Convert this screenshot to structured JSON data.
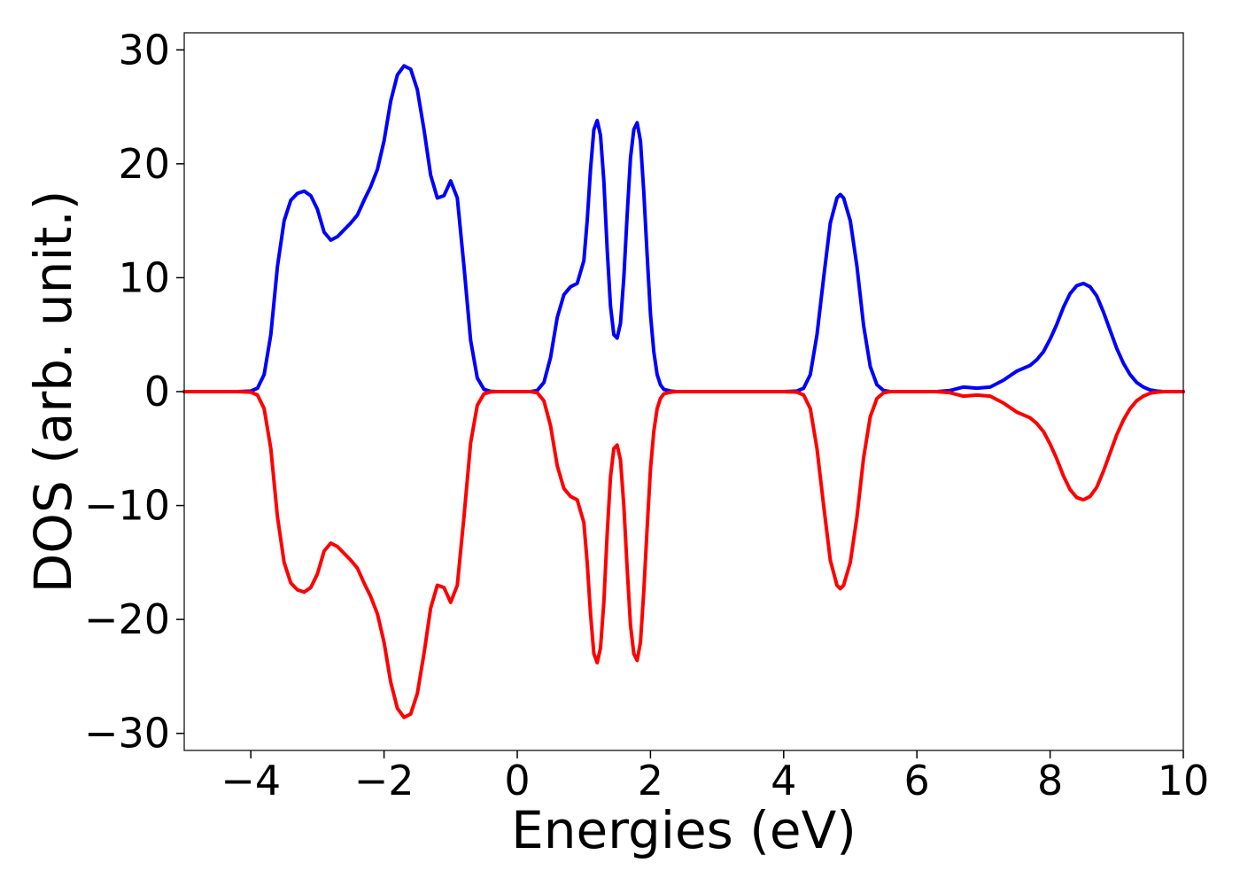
{
  "chart_data": {
    "type": "line",
    "title": "",
    "xlabel": "Energies (eV)",
    "ylabel": "DOS (arb. unit.)",
    "xlim": [
      -5,
      10
    ],
    "ylim": [
      -31.5,
      31.5
    ],
    "xticks": [
      -4,
      -2,
      0,
      2,
      4,
      6,
      8,
      10
    ],
    "yticks": [
      -30,
      -20,
      -10,
      0,
      10,
      20,
      30
    ],
    "xtick_labels": [
      "−4",
      "−2",
      "0",
      "2",
      "4",
      "6",
      "8",
      "10"
    ],
    "ytick_labels": [
      "−30",
      "−20",
      "−10",
      "0",
      "10",
      "20",
      "30"
    ],
    "grid": false,
    "legend": "none",
    "x": [
      -5.0,
      -4.2,
      -4.0,
      -3.9,
      -3.8,
      -3.7,
      -3.6,
      -3.5,
      -3.4,
      -3.3,
      -3.2,
      -3.1,
      -3.0,
      -2.9,
      -2.8,
      -2.7,
      -2.6,
      -2.5,
      -2.4,
      -2.3,
      -2.2,
      -2.1,
      -2.0,
      -1.9,
      -1.8,
      -1.7,
      -1.6,
      -1.5,
      -1.4,
      -1.3,
      -1.2,
      -1.1,
      -1.0,
      -0.9,
      -0.8,
      -0.7,
      -0.6,
      -0.5,
      -0.4,
      -0.3,
      -0.2,
      0.0,
      0.2,
      0.3,
      0.4,
      0.5,
      0.6,
      0.7,
      0.8,
      0.9,
      1.0,
      1.05,
      1.1,
      1.15,
      1.2,
      1.25,
      1.3,
      1.35,
      1.4,
      1.45,
      1.5,
      1.55,
      1.6,
      1.65,
      1.7,
      1.75,
      1.8,
      1.85,
      1.9,
      1.95,
      2.0,
      2.05,
      2.1,
      2.15,
      2.2,
      2.3,
      2.4,
      2.6,
      3.0,
      3.5,
      4.0,
      4.2,
      4.3,
      4.4,
      4.5,
      4.6,
      4.7,
      4.8,
      4.85,
      4.9,
      5.0,
      5.1,
      5.2,
      5.3,
      5.4,
      5.5,
      5.6,
      6.0,
      6.3,
      6.5,
      6.7,
      6.9,
      7.1,
      7.3,
      7.5,
      7.7,
      7.8,
      7.9,
      8.0,
      8.1,
      8.2,
      8.3,
      8.4,
      8.5,
      8.6,
      8.7,
      8.8,
      8.9,
      9.0,
      9.1,
      9.2,
      9.3,
      9.4,
      9.5,
      9.6,
      9.7,
      10.0
    ],
    "series": [
      {
        "color": "#0000ff",
        "values": [
          0,
          0,
          0.05,
          0.3,
          1.5,
          5.0,
          11.0,
          15.0,
          16.8,
          17.4,
          17.6,
          17.2,
          16.0,
          14.0,
          13.3,
          13.6,
          14.2,
          14.8,
          15.5,
          16.8,
          18.0,
          19.5,
          22.0,
          25.5,
          27.8,
          28.6,
          28.3,
          26.5,
          23.0,
          19.0,
          17.0,
          17.2,
          18.5,
          17.0,
          11.0,
          4.5,
          1.2,
          0.2,
          0.03,
          0,
          0,
          0,
          0,
          0.1,
          0.8,
          3.0,
          6.5,
          8.5,
          9.2,
          9.5,
          11.5,
          15.0,
          19.5,
          23.0,
          23.8,
          22.5,
          18.5,
          12.5,
          7.5,
          5.0,
          4.7,
          6.0,
          10.0,
          15.5,
          20.5,
          23.0,
          23.6,
          22.0,
          17.5,
          12.0,
          6.8,
          3.5,
          1.5,
          0.6,
          0.2,
          0.05,
          0,
          0,
          0,
          0,
          0,
          0.05,
          0.3,
          1.5,
          5.0,
          10.0,
          14.8,
          17.0,
          17.3,
          17.0,
          15.0,
          11.0,
          5.8,
          2.2,
          0.6,
          0.1,
          0,
          0,
          0,
          0.1,
          0.4,
          0.3,
          0.4,
          1.0,
          1.8,
          2.3,
          2.8,
          3.5,
          4.6,
          5.9,
          7.4,
          8.6,
          9.3,
          9.5,
          9.2,
          8.4,
          7.0,
          5.4,
          3.8,
          2.5,
          1.5,
          0.8,
          0.4,
          0.15,
          0.05,
          0,
          0
        ]
      },
      {
        "color": "#ff0000",
        "values": [
          0,
          0,
          -0.05,
          -0.3,
          -1.5,
          -5.0,
          -11.0,
          -15.0,
          -16.8,
          -17.4,
          -17.6,
          -17.2,
          -16.0,
          -14.0,
          -13.3,
          -13.6,
          -14.2,
          -14.8,
          -15.5,
          -16.8,
          -18.0,
          -19.5,
          -22.0,
          -25.5,
          -27.8,
          -28.6,
          -28.3,
          -26.5,
          -23.0,
          -19.0,
          -17.0,
          -17.2,
          -18.5,
          -17.0,
          -11.0,
          -4.5,
          -1.2,
          -0.2,
          -0.03,
          0,
          0,
          0,
          0,
          -0.1,
          -0.8,
          -3.0,
          -6.5,
          -8.5,
          -9.2,
          -9.5,
          -11.5,
          -15.0,
          -19.5,
          -23.0,
          -23.8,
          -22.5,
          -18.5,
          -12.5,
          -7.5,
          -5.0,
          -4.7,
          -6.0,
          -10.0,
          -15.5,
          -20.5,
          -23.0,
          -23.6,
          -22.0,
          -17.5,
          -12.0,
          -6.8,
          -3.5,
          -1.5,
          -0.6,
          -0.2,
          -0.05,
          0,
          0,
          0,
          0,
          0,
          -0.05,
          -0.3,
          -1.5,
          -5.0,
          -10.0,
          -14.8,
          -17.0,
          -17.3,
          -17.0,
          -15.0,
          -11.0,
          -5.8,
          -2.2,
          -0.6,
          -0.1,
          0,
          0,
          0,
          -0.1,
          -0.4,
          -0.3,
          -0.4,
          -1.0,
          -1.8,
          -2.3,
          -2.8,
          -3.5,
          -4.6,
          -5.9,
          -7.4,
          -8.6,
          -9.3,
          -9.5,
          -9.2,
          -8.4,
          -7.0,
          -5.4,
          -3.8,
          -2.5,
          -1.5,
          -0.8,
          -0.4,
          -0.15,
          -0.05,
          0,
          0
        ]
      }
    ]
  }
}
